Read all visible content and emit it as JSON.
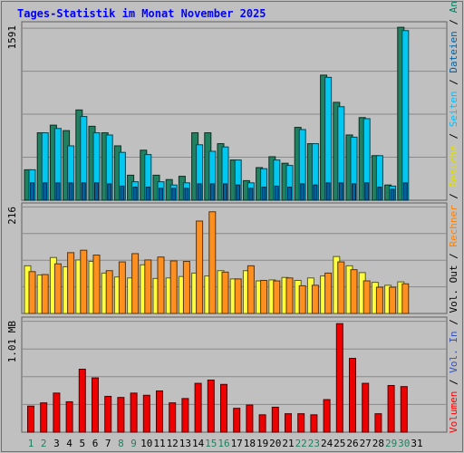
{
  "title": "Tages-Statistik im Monat November 2025",
  "side_legend": [
    {
      "text": "Volumen",
      "color": "#ff0000"
    },
    {
      "text": " / ",
      "color": "#000000"
    },
    {
      "text": "Vol. In",
      "color": "#3050c0"
    },
    {
      "text": " / ",
      "color": "#000000"
    },
    {
      "text": "Vol. Out",
      "color": "#000000"
    },
    {
      "text": " / ",
      "color": "#000000"
    },
    {
      "text": "Rechner",
      "color": "#ff8000"
    },
    {
      "text": " / ",
      "color": "#000000"
    },
    {
      "text": "Besuche",
      "color": "#e0e000"
    },
    {
      "text": " / ",
      "color": "#000000"
    },
    {
      "text": "Seiten",
      "color": "#00c0ff"
    },
    {
      "text": " / ",
      "color": "#000000"
    },
    {
      "text": "Dateien",
      "color": "#0060a0"
    },
    {
      "text": " / ",
      "color": "#000000"
    },
    {
      "text": "Anfragen",
      "color": "#008060"
    }
  ],
  "chart_data": [
    {
      "type": "bar",
      "panel": "top",
      "ylabel": "1591",
      "ylim": [
        0,
        1591
      ],
      "categories": [
        "1",
        "2",
        "3",
        "4",
        "5",
        "6",
        "7",
        "8",
        "9",
        "10",
        "11",
        "12",
        "13",
        "14",
        "15",
        "16",
        "17",
        "18",
        "19",
        "20",
        "21",
        "22",
        "23",
        "24",
        "25",
        "26",
        "27",
        "28",
        "29",
        "30"
      ],
      "series": [
        {
          "name": "Anfragen",
          "color": "#208060",
          "values": [
            280,
            620,
            690,
            640,
            830,
            680,
            620,
            500,
            230,
            460,
            230,
            190,
            220,
            620,
            620,
            520,
            370,
            180,
            300,
            400,
            340,
            670,
            520,
            1150,
            900,
            600,
            760,
            410,
            140,
            1590
          ]
        },
        {
          "name": "Dateien",
          "color": "#00c8f0",
          "values": [
            280,
            620,
            660,
            500,
            770,
            620,
            600,
            440,
            170,
            420,
            170,
            140,
            160,
            510,
            450,
            490,
            370,
            160,
            290,
            370,
            320,
            650,
            520,
            1130,
            860,
            580,
            750,
            410,
            130,
            1560
          ]
        },
        {
          "name": "Seiten",
          "color": "#0060a0",
          "values": [
            160,
            160,
            160,
            160,
            160,
            160,
            150,
            130,
            120,
            120,
            110,
            110,
            110,
            150,
            150,
            150,
            140,
            110,
            120,
            130,
            120,
            150,
            140,
            160,
            160,
            150,
            160,
            120,
            100,
            160
          ]
        }
      ],
      "series_colors": [
        "#208060",
        "#00c8f0",
        "#0060a0"
      ]
    },
    {
      "type": "bar",
      "panel": "middle",
      "ylabel": "216",
      "ylim": [
        0,
        216
      ],
      "categories": [
        "1",
        "2",
        "3",
        "4",
        "5",
        "6",
        "7",
        "8",
        "9",
        "10",
        "11",
        "12",
        "13",
        "14",
        "15",
        "16",
        "17",
        "18",
        "19",
        "20",
        "21",
        "22",
        "23",
        "24",
        "25",
        "26",
        "27",
        "28",
        "29",
        "30"
      ],
      "series": [
        {
          "name": "Besuche",
          "color": "#ffff40",
          "values": [
            98,
            79,
            115,
            96,
            110,
            107,
            83,
            75,
            73,
            100,
            72,
            73,
            76,
            83,
            77,
            88,
            71,
            88,
            67,
            69,
            74,
            68,
            73,
            77,
            117,
            98,
            84,
            64,
            58,
            65
          ]
        },
        {
          "name": "Rechner",
          "color": "#ff9020",
          "values": [
            86,
            80,
            102,
            125,
            130,
            120,
            88,
            106,
            123,
            110,
            116,
            108,
            107,
            190,
            209,
            85,
            71,
            98,
            68,
            67,
            73,
            57,
            58,
            83,
            106,
            90,
            67,
            54,
            54,
            61
          ]
        }
      ],
      "series_colors": [
        "#ffff40",
        "#ff9020"
      ]
    },
    {
      "type": "bar",
      "panel": "bottom",
      "ylabel": "1.01 MB",
      "ylim": [
        0,
        1.01
      ],
      "categories": [
        "1",
        "2",
        "3",
        "4",
        "5",
        "6",
        "7",
        "8",
        "9",
        "10",
        "11",
        "12",
        "13",
        "14",
        "15",
        "16",
        "17",
        "18",
        "19",
        "20",
        "21",
        "22",
        "23",
        "24",
        "25",
        "26",
        "27",
        "28",
        "29",
        "30"
      ],
      "series": [
        {
          "name": "Volumen",
          "color": "#ee0000",
          "values": [
            0.24,
            0.27,
            0.36,
            0.28,
            0.58,
            0.5,
            0.33,
            0.32,
            0.36,
            0.34,
            0.38,
            0.27,
            0.31,
            0.45,
            0.48,
            0.44,
            0.22,
            0.25,
            0.16,
            0.23,
            0.17,
            0.17,
            0.16,
            0.3,
            1.0,
            0.68,
            0.45,
            0.17,
            0.43,
            0.42
          ]
        }
      ],
      "series_colors": [
        "#ee0000"
      ]
    }
  ],
  "x_labels": [
    {
      "text": "1",
      "color": "#208060"
    },
    {
      "text": "2",
      "color": "#208060"
    },
    {
      "text": "3",
      "color": "#000000"
    },
    {
      "text": "4",
      "color": "#000000"
    },
    {
      "text": "5",
      "color": "#000000"
    },
    {
      "text": "6",
      "color": "#000000"
    },
    {
      "text": "7",
      "color": "#000000"
    },
    {
      "text": "8",
      "color": "#208060"
    },
    {
      "text": "9",
      "color": "#208060"
    },
    {
      "text": "10",
      "color": "#000000"
    },
    {
      "text": "11",
      "color": "#000000"
    },
    {
      "text": "12",
      "color": "#000000"
    },
    {
      "text": "13",
      "color": "#000000"
    },
    {
      "text": "14",
      "color": "#000000"
    },
    {
      "text": "15",
      "color": "#208060"
    },
    {
      "text": "16",
      "color": "#208060"
    },
    {
      "text": "17",
      "color": "#000000"
    },
    {
      "text": "18",
      "color": "#000000"
    },
    {
      "text": "19",
      "color": "#000000"
    },
    {
      "text": "20",
      "color": "#000000"
    },
    {
      "text": "21",
      "color": "#000000"
    },
    {
      "text": "22",
      "color": "#208060"
    },
    {
      "text": "23",
      "color": "#208060"
    },
    {
      "text": "24",
      "color": "#000000"
    },
    {
      "text": "25",
      "color": "#000000"
    },
    {
      "text": "26",
      "color": "#000000"
    },
    {
      "text": "27",
      "color": "#000000"
    },
    {
      "text": "28",
      "color": "#000000"
    },
    {
      "text": "29",
      "color": "#208060"
    },
    {
      "text": "30",
      "color": "#208060"
    },
    {
      "text": "31",
      "color": "#000000"
    }
  ]
}
